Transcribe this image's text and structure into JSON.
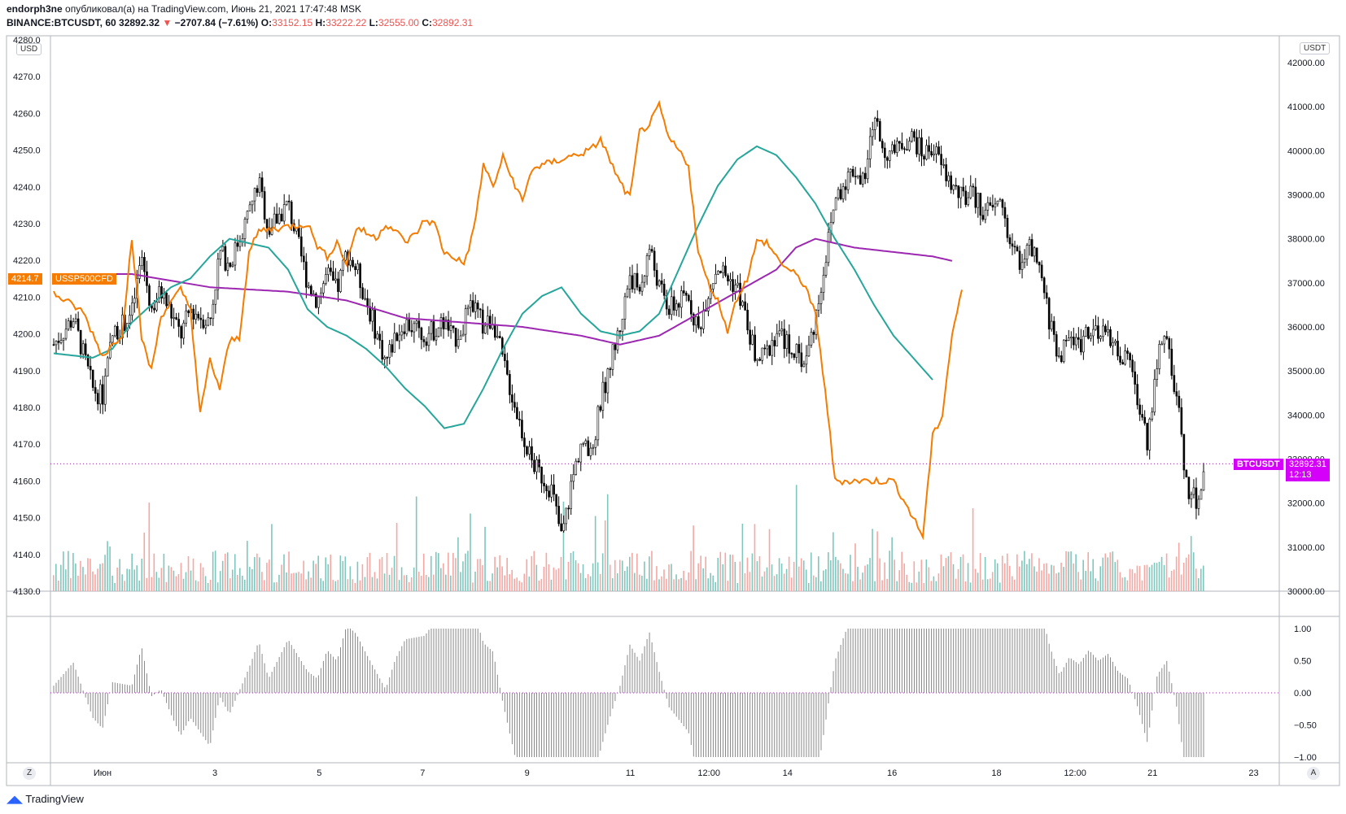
{
  "header": {
    "author": "endorph3ne",
    "published_text": "опубликовал(а) на TradingView.com, Июнь 21, 2021 17:47:48 MSK",
    "symbol": "BINANCE:BTCUSDT, 60",
    "price": "32892.32",
    "change": "−2707.84 (−7.61%)",
    "o_label": "O:",
    "o_value": "33152.15",
    "h_label": "H:",
    "h_value": "33222.22",
    "l_label": "L:",
    "l_value": "32555.00",
    "c_label": "C:",
    "c_value": "32892.31"
  },
  "left_axis": {
    "unit": "USD",
    "current_tag_value": "4214.7",
    "current_tag_name": "USSP500CFD"
  },
  "right_axis": {
    "unit": "USDT",
    "current_tag_name": "BTCUSDT",
    "current_tag_value": "32892.31",
    "countdown": "12:13"
  },
  "bottom_buttons": {
    "left": "Z",
    "right": "A"
  },
  "brand": "TradingView",
  "colors": {
    "sp500": "#f57c00",
    "ma_fast": "#26a69a",
    "ma_slow": "#9c27b0",
    "candle": "#000000",
    "vol_up": "#7fc7bd",
    "vol_down": "#f5a7a3",
    "osc": "#888888"
  },
  "chart_data": [
    {
      "type": "candlestick",
      "name": "BTCUSDT",
      "x_labels": [
        "Июн",
        "3",
        "5",
        "7",
        "9",
        "11",
        "12:00",
        "14",
        "16",
        "18",
        "12:00",
        "21",
        "23"
      ],
      "right_ylim": [
        30000,
        42000
      ],
      "right_ticks": [
        "42000.00",
        "41000.00",
        "40000.00",
        "39000.00",
        "38000.00",
        "37000.00",
        "36000.00",
        "35000.00",
        "34000.00",
        "33000.00",
        "32000.00",
        "31000.00",
        "30000.00"
      ],
      "left_ylim": [
        4130,
        4280
      ],
      "left_ticks": [
        "4280.0",
        "4270.0",
        "4260.0",
        "4250.0",
        "4240.0",
        "4230.0",
        "4220.0",
        "4210.0",
        "4200.0",
        "4190.0",
        "4180.0",
        "4170.0",
        "4160.0",
        "4150.0",
        "4140.0",
        "4130.0"
      ],
      "btc_close_path": [
        [
          0,
          35600
        ],
        [
          2,
          36200
        ],
        [
          4,
          34600
        ],
        [
          5,
          34400
        ],
        [
          6,
          35800
        ],
        [
          8,
          36300
        ],
        [
          9,
          37600
        ],
        [
          10,
          36400
        ],
        [
          11,
          36800
        ],
        [
          13,
          35800
        ],
        [
          14,
          36400
        ],
        [
          16,
          36100
        ],
        [
          17,
          37700
        ],
        [
          18,
          37400
        ],
        [
          20,
          38600
        ],
        [
          21,
          39300
        ],
        [
          22,
          38200
        ],
        [
          24,
          38800
        ],
        [
          26,
          37000
        ],
        [
          27,
          36600
        ],
        [
          28,
          37200
        ],
        [
          29,
          36800
        ],
        [
          30,
          37700
        ],
        [
          31,
          37300
        ],
        [
          33,
          35900
        ],
        [
          34,
          35200
        ],
        [
          35,
          35800
        ],
        [
          36,
          36100
        ],
        [
          38,
          35800
        ],
        [
          40,
          36100
        ],
        [
          41,
          35700
        ],
        [
          43,
          36500
        ],
        [
          44,
          36000
        ],
        [
          45,
          36200
        ],
        [
          46,
          35200
        ],
        [
          47,
          34400
        ],
        [
          48,
          33600
        ],
        [
          49,
          32900
        ],
        [
          50,
          32600
        ],
        [
          51,
          32300
        ],
        [
          52,
          31200
        ],
        [
          53,
          32400
        ],
        [
          54,
          33400
        ],
        [
          55,
          33000
        ],
        [
          56,
          34300
        ],
        [
          57,
          35200
        ],
        [
          58,
          36000
        ],
        [
          59,
          37200
        ],
        [
          60,
          36800
        ],
        [
          61,
          37800
        ],
        [
          62,
          36900
        ],
        [
          63,
          36400
        ],
        [
          65,
          36700
        ],
        [
          66,
          35900
        ],
        [
          67,
          36800
        ],
        [
          68,
          37400
        ],
        [
          69,
          37100
        ],
        [
          70,
          36900
        ],
        [
          72,
          35200
        ],
        [
          73,
          35400
        ],
        [
          74,
          35900
        ],
        [
          76,
          35400
        ],
        [
          77,
          35200
        ],
        [
          78,
          36200
        ],
        [
          79,
          37500
        ],
        [
          80,
          38900
        ],
        [
          81,
          39300
        ],
        [
          82,
          39600
        ],
        [
          83,
          39200
        ],
        [
          84,
          40800
        ],
        [
          85,
          40000
        ],
        [
          86,
          39900
        ],
        [
          87,
          40200
        ],
        [
          88,
          40300
        ],
        [
          89,
          39900
        ],
        [
          90,
          40100
        ],
        [
          91,
          39600
        ],
        [
          92,
          39200
        ],
        [
          93,
          38900
        ],
        [
          94,
          39000
        ],
        [
          95,
          38700
        ],
        [
          96,
          38600
        ],
        [
          97,
          38900
        ],
        [
          98,
          37800
        ],
        [
          99,
          37500
        ],
        [
          100,
          37800
        ],
        [
          101,
          37200
        ],
        [
          102,
          36100
        ],
        [
          103,
          35300
        ],
        [
          104,
          35800
        ],
        [
          105,
          35600
        ],
        [
          106,
          36000
        ],
        [
          107,
          35700
        ],
        [
          108,
          35900
        ],
        [
          109,
          35400
        ],
        [
          110,
          35200
        ],
        [
          111,
          34400
        ],
        [
          112,
          33400
        ],
        [
          113,
          35300
        ],
        [
          114,
          35700
        ],
        [
          115,
          34400
        ],
        [
          116,
          32400
        ],
        [
          117,
          32000
        ],
        [
          118,
          32900
        ]
      ],
      "sp500_path": [
        [
          0,
          4211
        ],
        [
          3,
          4206
        ],
        [
          5,
          4194
        ],
        [
          7,
          4200
        ],
        [
          8,
          4226
        ],
        [
          9,
          4199
        ],
        [
          10,
          4190
        ],
        [
          11,
          4205
        ],
        [
          13,
          4212
        ],
        [
          14,
          4207
        ],
        [
          15,
          4178
        ],
        [
          16,
          4193
        ],
        [
          17,
          4185
        ],
        [
          18,
          4198
        ],
        [
          19,
          4199
        ],
        [
          20,
          4222
        ],
        [
          21,
          4228
        ],
        [
          26,
          4230
        ],
        [
          27,
          4224
        ],
        [
          28,
          4221
        ],
        [
          29,
          4225
        ],
        [
          30,
          4219
        ],
        [
          31,
          4229
        ],
        [
          33,
          4226
        ],
        [
          34,
          4230
        ],
        [
          35,
          4228
        ],
        [
          36,
          4225
        ],
        [
          37,
          4227
        ],
        [
          38,
          4231
        ],
        [
          39,
          4230
        ],
        [
          40,
          4222
        ],
        [
          41,
          4221
        ],
        [
          42,
          4219
        ],
        [
          43,
          4228
        ],
        [
          44,
          4246
        ],
        [
          45,
          4240
        ],
        [
          46,
          4248
        ],
        [
          47,
          4242
        ],
        [
          48,
          4236
        ],
        [
          49,
          4245
        ],
        [
          55,
          4250
        ],
        [
          56,
          4253
        ],
        [
          57,
          4247
        ],
        [
          58,
          4241
        ],
        [
          59,
          4237
        ],
        [
          60,
          4255
        ],
        [
          61,
          4257
        ],
        [
          62,
          4262
        ],
        [
          63,
          4253
        ],
        [
          64,
          4250
        ],
        [
          65,
          4246
        ],
        [
          66,
          4222
        ],
        [
          67,
          4214
        ],
        [
          68,
          4209
        ],
        [
          69,
          4201
        ],
        [
          70,
          4210
        ],
        [
          71,
          4215
        ],
        [
          72,
          4225
        ],
        [
          73,
          4225
        ],
        [
          74,
          4221
        ],
        [
          75,
          4218
        ],
        [
          76,
          4216
        ],
        [
          77,
          4213
        ],
        [
          78,
          4205
        ],
        [
          79,
          4185
        ],
        [
          80,
          4160
        ],
        [
          86,
          4160
        ],
        [
          88,
          4150
        ],
        [
          89,
          4145
        ],
        [
          90,
          4172
        ],
        [
          91,
          4178
        ],
        [
          92,
          4200
        ],
        [
          93,
          4212
        ]
      ],
      "ma_fast_path": [
        [
          0,
          35400
        ],
        [
          4,
          35300
        ],
        [
          6,
          35500
        ],
        [
          8,
          36100
        ],
        [
          10,
          36500
        ],
        [
          12,
          36900
        ],
        [
          14,
          37100
        ],
        [
          16,
          37600
        ],
        [
          18,
          38000
        ],
        [
          20,
          37900
        ],
        [
          22,
          37800
        ],
        [
          24,
          37300
        ],
        [
          26,
          36400
        ],
        [
          28,
          36000
        ],
        [
          30,
          35800
        ],
        [
          32,
          35500
        ],
        [
          34,
          35100
        ],
        [
          36,
          34600
        ],
        [
          38,
          34200
        ],
        [
          40,
          33700
        ],
        [
          42,
          33800
        ],
        [
          44,
          34600
        ],
        [
          46,
          35500
        ],
        [
          48,
          36300
        ],
        [
          50,
          36700
        ],
        [
          52,
          36900
        ],
        [
          54,
          36300
        ],
        [
          56,
          35900
        ],
        [
          58,
          35800
        ],
        [
          60,
          35900
        ],
        [
          62,
          36300
        ],
        [
          64,
          37300
        ],
        [
          66,
          38300
        ],
        [
          68,
          39200
        ],
        [
          70,
          39800
        ],
        [
          72,
          40100
        ],
        [
          74,
          39900
        ],
        [
          76,
          39400
        ],
        [
          78,
          38800
        ],
        [
          80,
          38000
        ],
        [
          82,
          37300
        ],
        [
          84,
          36500
        ],
        [
          86,
          35800
        ],
        [
          88,
          35300
        ],
        [
          90,
          34800
        ]
      ],
      "ma_slow_path": [
        [
          0,
          37200
        ],
        [
          8,
          37200
        ],
        [
          16,
          36900
        ],
        [
          24,
          36800
        ],
        [
          30,
          36600
        ],
        [
          36,
          36200
        ],
        [
          42,
          36100
        ],
        [
          48,
          36000
        ],
        [
          54,
          35800
        ],
        [
          58,
          35600
        ],
        [
          62,
          35800
        ],
        [
          66,
          36300
        ],
        [
          70,
          36800
        ],
        [
          74,
          37300
        ],
        [
          76,
          37800
        ],
        [
          78,
          38000
        ],
        [
          82,
          37800
        ],
        [
          86,
          37700
        ],
        [
          90,
          37600
        ],
        [
          92,
          37500
        ]
      ],
      "volume_range": [
        0,
        3300
      ],
      "oscillator_ticks": [
        "1.00",
        "0.50",
        "0.00",
        "−0.50",
        "−1.00"
      ],
      "oscillator_range": [
        -1.0,
        1.0
      ]
    }
  ]
}
